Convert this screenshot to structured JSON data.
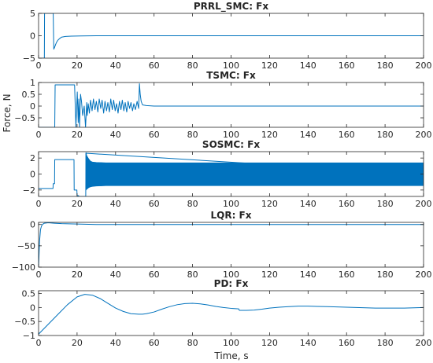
{
  "figure": {
    "ylabel": "Force, N",
    "xlabel": "Time, s"
  },
  "colors": {
    "line": "#0072bd",
    "axis": "#262626",
    "background": "#ffffff"
  },
  "chart_data": [
    {
      "type": "line",
      "title": "PRRL_SMC: Fx",
      "xlim": [
        0,
        200
      ],
      "ylim": [
        -5,
        5
      ],
      "xticks": [
        0,
        20,
        40,
        60,
        80,
        100,
        120,
        140,
        160,
        180,
        200
      ],
      "yticks": [
        -5,
        0,
        5
      ],
      "x": [
        0,
        3,
        3.1,
        3.2,
        5,
        5.6,
        7.6,
        7.9,
        8.4,
        8.8,
        9.3,
        10,
        11,
        12,
        14,
        17,
        22,
        30,
        40,
        200
      ],
      "y": [
        -5,
        -5,
        5,
        5,
        5,
        5,
        5,
        -3,
        -2.5,
        -2,
        -1.5,
        -1.0,
        -0.6,
        -0.3,
        -0.15,
        -0.08,
        -0.04,
        0,
        0,
        0
      ]
    },
    {
      "type": "line",
      "title": "TSMC: Fx",
      "xlim": [
        0,
        200
      ],
      "ylim": [
        -0.9,
        1
      ],
      "xticks": [
        0,
        20,
        40,
        60,
        80,
        100,
        120,
        140,
        160,
        180,
        200
      ],
      "yticks": [
        -0.5,
        0,
        0.5,
        1
      ],
      "x": [
        0,
        8.4,
        8.6,
        18.5,
        18.7,
        19.4,
        20.1,
        20.6,
        20.9,
        21.3,
        21.8,
        22.3,
        22.9,
        23.7,
        24.4,
        25.0,
        25.3,
        25.8,
        26.4,
        27.0,
        27.8,
        28.5,
        29.3,
        30.0,
        30.8,
        31.5,
        32.3,
        33.0,
        33.8,
        34.5,
        35.3,
        36.0,
        36.8,
        37.5,
        38.3,
        39.0,
        39.8,
        40.5,
        41.3,
        42.0,
        42.8,
        43.5,
        44.3,
        45.0,
        45.8,
        46.5,
        47.3,
        48.0,
        48.8,
        49.5,
        50.3,
        51.2,
        52.0,
        52.4,
        52.8,
        53.3,
        54,
        56,
        60,
        200
      ],
      "y": [
        -0.9,
        -0.9,
        0.9,
        0.9,
        0.9,
        -0.9,
        0.6,
        -0.7,
        0.3,
        -0.9,
        0.5,
        0.2,
        -0.4,
        0.0,
        -0.9,
        0.15,
        -0.4,
        0.1,
        -0.3,
        0.25,
        -0.2,
        0.3,
        -0.15,
        0.2,
        -0.25,
        0.3,
        -0.1,
        0.25,
        -0.3,
        0.2,
        -0.2,
        0.15,
        -0.25,
        0.3,
        -0.15,
        0.25,
        -0.2,
        0.1,
        -0.3,
        0.2,
        -0.15,
        0.25,
        -0.2,
        0.15,
        -0.25,
        0.2,
        -0.1,
        0.15,
        -0.2,
        0.1,
        -0.15,
        0.2,
        -0.1,
        0.95,
        0.5,
        0.2,
        0.05,
        0.02,
        0,
        0
      ]
    },
    {
      "type": "line",
      "title": "SOSMC: Fx",
      "xlim": [
        0,
        200
      ],
      "ylim": [
        -2.8,
        2.8
      ],
      "xticks": [
        0,
        20,
        40,
        60,
        80,
        100,
        120,
        140,
        160,
        180,
        200
      ],
      "yticks": [
        -2,
        0,
        2
      ],
      "x": [
        0,
        7.5,
        7.6,
        8.3,
        8.4,
        18.4,
        18.5,
        19.9,
        20.0,
        20.8,
        20.9,
        21.9,
        22.0,
        24.5,
        24.6,
        200
      ],
      "y": [
        -1.8,
        -1.8,
        -1.2,
        -1.2,
        1.8,
        1.8,
        -2.0,
        -2.0,
        -2.7,
        -2.7,
        -2.8,
        -2.8,
        -2.8,
        -2.8,
        2.6,
        0
      ],
      "band": {
        "x": [
          24.6,
          25,
          26,
          27,
          28,
          30,
          35,
          40,
          50,
          200
        ],
        "upper": [
          2.7,
          2.3,
          1.9,
          1.6,
          1.5,
          1.45,
          1.4,
          1.4,
          1.4,
          1.4
        ],
        "lower": [
          -2.0,
          -1.9,
          -1.7,
          -1.6,
          -1.55,
          -1.5,
          -1.45,
          -1.45,
          -1.45,
          -1.45
        ]
      }
    },
    {
      "type": "line",
      "title": "LQR: Fx",
      "xlim": [
        0,
        200
      ],
      "ylim": [
        -100,
        5
      ],
      "xticks": [
        0,
        20,
        40,
        60,
        80,
        100,
        120,
        140,
        160,
        180,
        200
      ],
      "yticks": [
        -100,
        -50,
        0
      ],
      "x": [
        0,
        0.5,
        1,
        1.5,
        2,
        3,
        5,
        8,
        12,
        20,
        30,
        50,
        200
      ],
      "y": [
        -100,
        -40,
        -12,
        -4,
        0,
        3,
        4,
        3,
        2,
        1,
        0,
        0,
        0
      ]
    },
    {
      "type": "line",
      "title": "PD: Fx",
      "xlim": [
        0,
        200
      ],
      "ylim": [
        -1,
        0.6
      ],
      "xticks": [
        0,
        20,
        40,
        60,
        80,
        100,
        120,
        140,
        160,
        180,
        200
      ],
      "yticks": [
        -1,
        -0.5,
        0,
        0.5
      ],
      "x": [
        0,
        5,
        10,
        15,
        20,
        24,
        28,
        32,
        36,
        40,
        44,
        48,
        52,
        54,
        56,
        60,
        64,
        68,
        72,
        76,
        80,
        84,
        88,
        92,
        96,
        100,
        104,
        104.3,
        108,
        112,
        116,
        120,
        125,
        130,
        135,
        140,
        145,
        150,
        155,
        160,
        165,
        170,
        175,
        180,
        185,
        190,
        195,
        200
      ],
      "y": [
        -0.95,
        -0.6,
        -0.25,
        0.1,
        0.38,
        0.47,
        0.44,
        0.32,
        0.15,
        -0.02,
        -0.14,
        -0.22,
        -0.24,
        -0.24,
        -0.22,
        -0.16,
        -0.06,
        0.03,
        0.1,
        0.14,
        0.15,
        0.13,
        0.09,
        0.04,
        0.0,
        -0.03,
        -0.05,
        -0.1,
        -0.1,
        -0.09,
        -0.06,
        -0.02,
        0.01,
        0.03,
        0.05,
        0.05,
        0.04,
        0.03,
        0.02,
        0.01,
        0.0,
        -0.01,
        -0.02,
        -0.02,
        -0.02,
        -0.02,
        -0.01,
        0.0
      ]
    }
  ]
}
